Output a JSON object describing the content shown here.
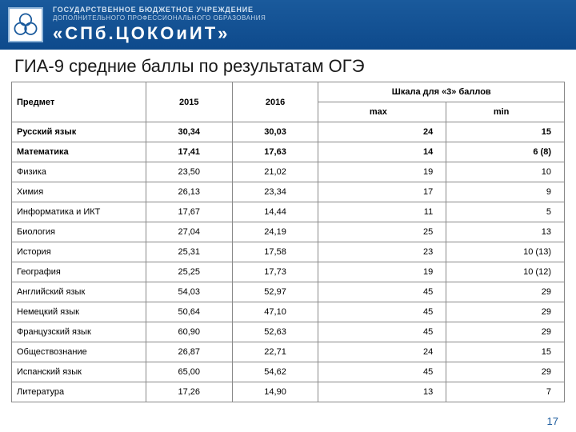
{
  "header": {
    "line1": "ГОСУДАРСТВЕННОЕ БЮДЖЕТНОЕ УЧРЕЖДЕНИЕ",
    "line2": "ДОПОЛНИТЕЛЬНОГО ПРОФЕССИОНАЛЬНОГО ОБРАЗОВАНИЯ",
    "line3": "«СПб.ЦОКОиИТ»"
  },
  "title": "ГИА-9 средние баллы по результатам ОГЭ",
  "table": {
    "super_header": "Шкала для «3» баллов",
    "columns": {
      "subject": "Предмет",
      "y2015": "2015",
      "y2016": "2016",
      "max": "max",
      "min": "min"
    },
    "rows": [
      {
        "subject": "Русский язык",
        "y2015": "30,34",
        "y2016": "30,03",
        "max": "24",
        "min": "15",
        "bold": true
      },
      {
        "subject": "Математика",
        "y2015": "17,41",
        "y2016": "17,63",
        "max": "14",
        "min": "6 (8)",
        "bold": true
      },
      {
        "subject": "Физика",
        "y2015": "23,50",
        "y2016": "21,02",
        "max": "19",
        "min": "10",
        "bold": false
      },
      {
        "subject": "Химия",
        "y2015": "26,13",
        "y2016": "23,34",
        "max": "17",
        "min": "9",
        "bold": false
      },
      {
        "subject": "Информатика и ИКТ",
        "y2015": "17,67",
        "y2016": "14,44",
        "max": "11",
        "min": "5",
        "bold": false
      },
      {
        "subject": "Биология",
        "y2015": "27,04",
        "y2016": "24,19",
        "max": "25",
        "min": "13",
        "bold": false
      },
      {
        "subject": "История",
        "y2015": "25,31",
        "y2016": "17,58",
        "max": "23",
        "min": "10 (13)",
        "bold": false
      },
      {
        "subject": "География",
        "y2015": "25,25",
        "y2016": "17,73",
        "max": "19",
        "min": "10 (12)",
        "bold": false
      },
      {
        "subject": "Английский язык",
        "y2015": "54,03",
        "y2016": "52,97",
        "max": "45",
        "min": "29",
        "bold": false
      },
      {
        "subject": "Немецкий язык",
        "y2015": "50,64",
        "y2016": "47,10",
        "max": "45",
        "min": "29",
        "bold": false
      },
      {
        "subject": "Французский язык",
        "y2015": "60,90",
        "y2016": "52,63",
        "max": "45",
        "min": "29",
        "bold": false
      },
      {
        "subject": "Обществознание",
        "y2015": "26,87",
        "y2016": "22,71",
        "max": "24",
        "min": "15",
        "bold": false
      },
      {
        "subject": "Испанский язык",
        "y2015": "65,00",
        "y2016": "54,62",
        "max": "45",
        "min": "29",
        "bold": false
      },
      {
        "subject": "Литература",
        "y2015": "17,26",
        "y2016": "14,90",
        "max": "13",
        "min": "7",
        "bold": false
      }
    ]
  },
  "page_number": "17",
  "style": {
    "header_bg_top": "#1a5a9c",
    "header_bg_bottom": "#0e4a8c",
    "border_color": "#888888",
    "page_num_color": "#1a5a9c",
    "title_fontsize": 22,
    "table_fontsize": 11
  }
}
